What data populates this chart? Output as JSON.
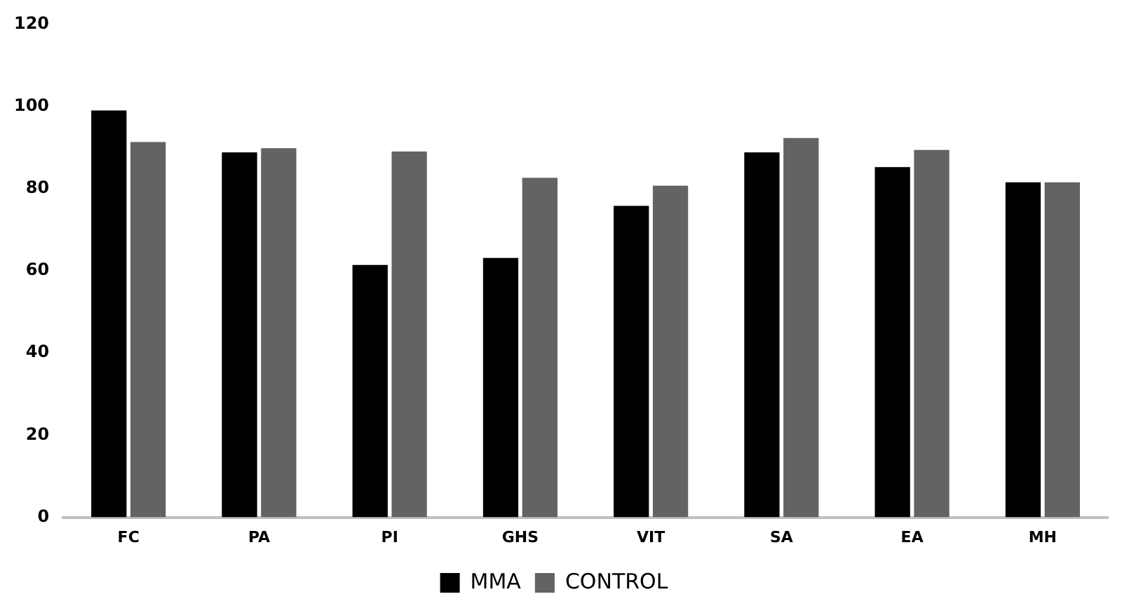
{
  "chart_data": {
    "type": "bar",
    "categories": [
      "FC",
      "PA",
      "PI",
      "GHS",
      "VIT",
      "SA",
      "EA",
      "MH"
    ],
    "series": [
      {
        "name": "MMA",
        "color": "#000000",
        "values": [
          99,
          88.8,
          61.4,
          63.1,
          75.8,
          88.8,
          85.2,
          81.5
        ]
      },
      {
        "name": "CONTROL",
        "color": "#636363",
        "values": [
          91.3,
          89.8,
          89,
          82.6,
          80.7,
          92.3,
          89.4,
          81.5
        ]
      }
    ],
    "ylim": [
      0,
      120
    ],
    "yticks": [
      0,
      20,
      40,
      60,
      80,
      100,
      120
    ],
    "grid": false,
    "legend": "bottom"
  }
}
